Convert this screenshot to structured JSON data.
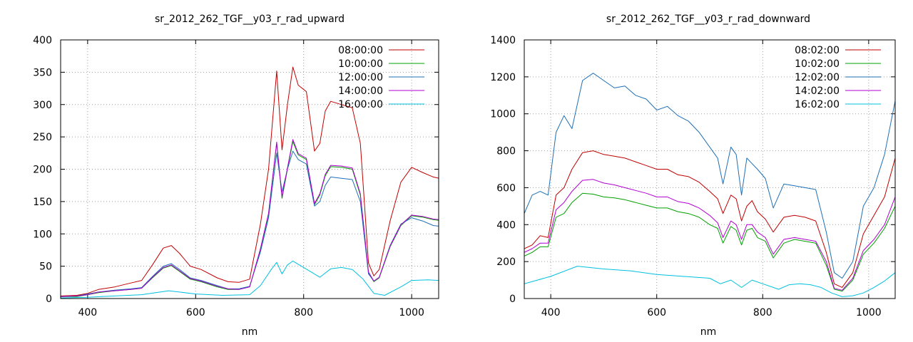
{
  "chart_data": [
    {
      "type": "line",
      "title": "sr_2012_262_TGF__y03_r_rad_upward",
      "xlabel": "nm",
      "ylabel": "",
      "xlim": [
        350,
        1050
      ],
      "ylim": [
        0,
        400
      ],
      "xticks": [
        400,
        600,
        800,
        1000
      ],
      "yticks": [
        0,
        50,
        100,
        150,
        200,
        250,
        300,
        350,
        400
      ],
      "grid": true,
      "legend_position": "top-right",
      "series": [
        {
          "name": "08:00:00",
          "color": "#c00000",
          "x": [
            350,
            380,
            400,
            420,
            450,
            480,
            500,
            520,
            540,
            555,
            570,
            590,
            610,
            640,
            660,
            680,
            700,
            720,
            735,
            750,
            760,
            770,
            780,
            790,
            805,
            820,
            830,
            840,
            850,
            870,
            890,
            905,
            920,
            930,
            940,
            960,
            980,
            1000,
            1020,
            1040,
            1050
          ],
          "y": [
            4,
            5,
            8,
            14,
            18,
            24,
            28,
            52,
            78,
            82,
            70,
            50,
            45,
            32,
            26,
            25,
            30,
            115,
            200,
            352,
            230,
            300,
            358,
            330,
            320,
            228,
            240,
            290,
            305,
            300,
            295,
            240,
            55,
            35,
            45,
            120,
            180,
            203,
            195,
            188,
            186
          ]
        },
        {
          "name": "10:00:00",
          "color": "#00a000",
          "x": [
            350,
            380,
            400,
            420,
            450,
            480,
            500,
            520,
            540,
            555,
            570,
            590,
            610,
            640,
            660,
            680,
            700,
            720,
            735,
            750,
            760,
            770,
            780,
            790,
            805,
            820,
            830,
            840,
            850,
            870,
            890,
            905,
            920,
            930,
            940,
            960,
            980,
            1000,
            1020,
            1040,
            1050
          ],
          "y": [
            3,
            3,
            6,
            9,
            12,
            14,
            16,
            32,
            47,
            51,
            42,
            30,
            26,
            18,
            14,
            14,
            18,
            75,
            130,
            240,
            155,
            200,
            243,
            222,
            215,
            145,
            160,
            190,
            204,
            203,
            200,
            160,
            40,
            26,
            32,
            80,
            113,
            128,
            126,
            122,
            121
          ]
        },
        {
          "name": "12:00:00",
          "color": "#1f6fb5",
          "x": [
            350,
            380,
            400,
            420,
            450,
            480,
            500,
            520,
            540,
            555,
            570,
            590,
            610,
            640,
            660,
            680,
            700,
            720,
            735,
            750,
            760,
            770,
            780,
            790,
            805,
            820,
            830,
            840,
            850,
            870,
            890,
            905,
            920,
            930,
            940,
            960,
            980,
            1000,
            1020,
            1040,
            1050
          ],
          "y": [
            3,
            4,
            7,
            10,
            13,
            15,
            17,
            34,
            50,
            54,
            45,
            32,
            28,
            20,
            15,
            15,
            19,
            72,
            125,
            225,
            165,
            200,
            228,
            215,
            208,
            143,
            150,
            175,
            188,
            186,
            184,
            150,
            38,
            27,
            33,
            82,
            115,
            125,
            120,
            113,
            112
          ]
        },
        {
          "name": "14:00:00",
          "color": "#b000d0",
          "x": [
            350,
            380,
            400,
            420,
            450,
            480,
            500,
            520,
            540,
            555,
            570,
            590,
            610,
            640,
            660,
            680,
            700,
            720,
            735,
            750,
            760,
            770,
            780,
            790,
            805,
            820,
            830,
            840,
            850,
            870,
            890,
            905,
            920,
            930,
            940,
            960,
            980,
            1000,
            1020,
            1040,
            1050
          ],
          "y": [
            3,
            4,
            6,
            10,
            12,
            14,
            16,
            33,
            48,
            52,
            43,
            31,
            27,
            19,
            15,
            14,
            18,
            77,
            132,
            242,
            157,
            202,
            246,
            224,
            217,
            147,
            162,
            192,
            206,
            205,
            202,
            162,
            41,
            27,
            33,
            81,
            114,
            129,
            127,
            123,
            122
          ]
        },
        {
          "name": "16:00:00",
          "color": "#00c0e0",
          "x": [
            350,
            400,
            450,
            500,
            550,
            600,
            650,
            700,
            720,
            740,
            750,
            760,
            770,
            780,
            800,
            830,
            850,
            870,
            890,
            910,
            930,
            950,
            980,
            1000,
            1030,
            1050
          ],
          "y": [
            1,
            2,
            4,
            6,
            12,
            7,
            5,
            6,
            20,
            45,
            56,
            38,
            52,
            58,
            48,
            33,
            46,
            48,
            45,
            30,
            8,
            5,
            18,
            28,
            29,
            28
          ]
        }
      ]
    },
    {
      "type": "line",
      "title": "sr_2012_262_TGF__y03_r_rad_downward",
      "xlabel": "nm",
      "ylabel": "",
      "xlim": [
        350,
        1050
      ],
      "ylim": [
        0,
        1400
      ],
      "xticks": [
        400,
        600,
        800,
        1000
      ],
      "yticks": [
        0,
        200,
        400,
        600,
        800,
        1000,
        1200,
        1400
      ],
      "grid": true,
      "legend_position": "top-right",
      "series": [
        {
          "name": "08:02:00",
          "color": "#c00000",
          "x": [
            350,
            365,
            380,
            395,
            410,
            425,
            440,
            460,
            480,
            500,
            520,
            540,
            560,
            580,
            600,
            620,
            640,
            660,
            680,
            700,
            715,
            725,
            740,
            750,
            760,
            770,
            780,
            790,
            805,
            820,
            840,
            860,
            880,
            900,
            920,
            935,
            950,
            970,
            990,
            1010,
            1030,
            1050
          ],
          "y": [
            270,
            290,
            340,
            330,
            560,
            600,
            700,
            790,
            800,
            780,
            770,
            760,
            740,
            720,
            700,
            700,
            670,
            660,
            630,
            580,
            540,
            460,
            560,
            540,
            420,
            500,
            530,
            470,
            430,
            360,
            440,
            450,
            440,
            420,
            250,
            80,
            60,
            140,
            350,
            450,
            550,
            760
          ]
        },
        {
          "name": "10:02:00",
          "color": "#00a000",
          "x": [
            350,
            365,
            380,
            395,
            410,
            425,
            440,
            460,
            480,
            500,
            520,
            540,
            560,
            580,
            600,
            620,
            640,
            660,
            680,
            700,
            715,
            725,
            740,
            750,
            760,
            770,
            780,
            790,
            805,
            820,
            840,
            860,
            880,
            900,
            920,
            935,
            950,
            970,
            990,
            1010,
            1030,
            1050
          ],
          "y": [
            230,
            250,
            280,
            280,
            440,
            460,
            520,
            570,
            565,
            550,
            545,
            535,
            520,
            505,
            490,
            490,
            470,
            460,
            440,
            400,
            380,
            300,
            390,
            370,
            290,
            370,
            380,
            330,
            310,
            220,
            300,
            320,
            310,
            300,
            180,
            50,
            40,
            100,
            240,
            300,
            380,
            500
          ]
        },
        {
          "name": "12:02:00",
          "color": "#1f6fb5",
          "x": [
            350,
            365,
            380,
            395,
            410,
            425,
            440,
            460,
            480,
            500,
            520,
            540,
            560,
            580,
            600,
            620,
            640,
            660,
            680,
            700,
            715,
            725,
            740,
            750,
            760,
            770,
            780,
            790,
            805,
            820,
            840,
            860,
            880,
            900,
            920,
            935,
            950,
            970,
            990,
            1010,
            1030,
            1050
          ],
          "y": [
            460,
            560,
            580,
            560,
            900,
            990,
            920,
            1180,
            1220,
            1180,
            1140,
            1150,
            1100,
            1080,
            1020,
            1040,
            990,
            960,
            900,
            820,
            760,
            620,
            820,
            780,
            560,
            760,
            730,
            700,
            650,
            490,
            620,
            610,
            600,
            590,
            360,
            140,
            110,
            200,
            500,
            600,
            780,
            1070
          ]
        },
        {
          "name": "14:02:00",
          "color": "#b000d0",
          "x": [
            350,
            365,
            380,
            395,
            410,
            425,
            440,
            460,
            480,
            500,
            520,
            540,
            560,
            580,
            600,
            620,
            640,
            660,
            680,
            700,
            715,
            725,
            740,
            750,
            760,
            770,
            780,
            790,
            805,
            820,
            840,
            860,
            880,
            900,
            920,
            935,
            950,
            970,
            990,
            1010,
            1030,
            1050
          ],
          "y": [
            250,
            270,
            300,
            300,
            480,
            520,
            580,
            640,
            645,
            625,
            615,
            600,
            585,
            570,
            550,
            550,
            525,
            515,
            490,
            450,
            410,
            330,
            420,
            400,
            320,
            400,
            400,
            360,
            330,
            240,
            320,
            330,
            320,
            310,
            200,
            55,
            45,
            110,
            260,
            320,
            400,
            550
          ]
        },
        {
          "name": "16:02:00",
          "color": "#00c0e0",
          "x": [
            350,
            400,
            450,
            500,
            550,
            600,
            650,
            700,
            720,
            740,
            760,
            780,
            800,
            830,
            850,
            870,
            890,
            910,
            930,
            950,
            970,
            990,
            1010,
            1030,
            1050
          ],
          "y": [
            80,
            120,
            175,
            160,
            150,
            130,
            120,
            110,
            80,
            100,
            60,
            100,
            80,
            50,
            75,
            80,
            75,
            60,
            30,
            10,
            15,
            30,
            60,
            95,
            140
          ]
        }
      ]
    }
  ]
}
